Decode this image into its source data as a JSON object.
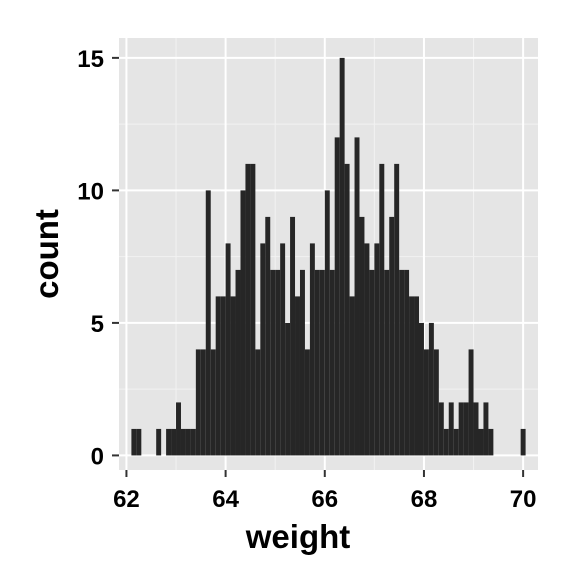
{
  "chart_data": {
    "type": "bar",
    "title": "",
    "xlabel": "weight",
    "ylabel": "count",
    "xlim": [
      61.85,
      70.3
    ],
    "ylim": [
      -0.55,
      15.75
    ],
    "x_ticks": [
      62,
      64,
      66,
      68,
      70
    ],
    "y_ticks": [
      0,
      5,
      10,
      15
    ],
    "x_tick_labels": [
      "62",
      "64",
      "66",
      "68",
      "70"
    ],
    "y_tick_labels": [
      "0",
      "5",
      "10",
      "15"
    ],
    "grid": true,
    "bin_width": 0.1,
    "bin_starts": [
      62.1,
      62.2,
      62.3,
      62.4,
      62.5,
      62.6,
      62.7,
      62.8,
      62.9,
      63.0,
      63.1,
      63.2,
      63.3,
      63.4,
      63.5,
      63.6,
      63.7,
      63.8,
      63.9,
      64.0,
      64.1,
      64.2,
      64.3,
      64.4,
      64.5,
      64.6,
      64.7,
      64.8,
      64.9,
      65.0,
      65.1,
      65.2,
      65.3,
      65.4,
      65.5,
      65.6,
      65.7,
      65.8,
      65.9,
      66.0,
      66.1,
      66.2,
      66.3,
      66.4,
      66.5,
      66.6,
      66.7,
      66.8,
      66.9,
      67.0,
      67.1,
      67.2,
      67.3,
      67.4,
      67.5,
      67.6,
      67.7,
      67.8,
      67.9,
      68.0,
      68.1,
      68.2,
      68.3,
      68.4,
      68.5,
      68.6,
      68.7,
      68.8,
      68.9,
      69.0,
      69.1,
      69.2,
      69.3,
      69.4,
      69.5,
      69.6,
      69.7,
      69.8,
      69.9
    ],
    "values": [
      1,
      1,
      0,
      0,
      0,
      1,
      0,
      1,
      1,
      2,
      1,
      1,
      1,
      4,
      4,
      10,
      4,
      6,
      6,
      8,
      6,
      7,
      10,
      11,
      11,
      4,
      8,
      9,
      7,
      7,
      8,
      5,
      9,
      6,
      7,
      4,
      8,
      7,
      7,
      10,
      7,
      12,
      15,
      11,
      6,
      12,
      9,
      8,
      7,
      8,
      11,
      7,
      9,
      11,
      7,
      7,
      6,
      6,
      5,
      4,
      5,
      4,
      2,
      1,
      2,
      1,
      2,
      2,
      4,
      2,
      1,
      2,
      1,
      0,
      0,
      0,
      0,
      0,
      0
    ],
    "extra_bars": [
      {
        "x": 69.95,
        "value": 1
      }
    ]
  }
}
